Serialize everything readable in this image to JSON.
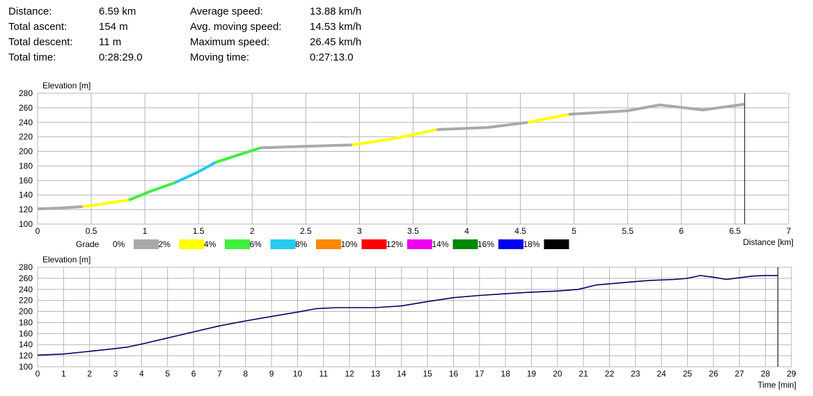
{
  "stats": {
    "left": [
      {
        "label": "Distance:",
        "value": "6.59 km"
      },
      {
        "label": "Total ascent:",
        "value": "154 m"
      },
      {
        "label": "Total descent:",
        "value": "11 m"
      },
      {
        "label": "Total time:",
        "value": "0:28:29.0"
      }
    ],
    "right": [
      {
        "label": "Average speed:",
        "value": "13.88 km/h"
      },
      {
        "label": "Avg. moving speed:",
        "value": "14.53 km/h"
      },
      {
        "label": "Maximum speed:",
        "value": "26.45 km/h"
      },
      {
        "label": "Moving time:",
        "value": "0:27:13.0"
      }
    ]
  },
  "grade_legend": {
    "title": "Grade",
    "items": [
      {
        "label": "0%",
        "color": "#a9a9a9"
      },
      {
        "label": "2%",
        "color": "#ffff00"
      },
      {
        "label": "4%",
        "color": "#40ee40"
      },
      {
        "label": "6%",
        "color": "#22ccee"
      },
      {
        "label": "8%",
        "color": "#ff8800"
      },
      {
        "label": "10%",
        "color": "#ff0000"
      },
      {
        "label": "12%",
        "color": "#ee00ee"
      },
      {
        "label": "14%",
        "color": "#008800"
      },
      {
        "label": "16%",
        "color": "#0000ee"
      },
      {
        "label": "18%",
        "color": "#000000"
      }
    ]
  },
  "chart_data": [
    {
      "type": "line",
      "ylabel": "Elevation [m]",
      "xlabel": "Distance [km]",
      "xlim": [
        0,
        7
      ],
      "ylim": [
        100,
        280
      ],
      "xticks": [
        "0",
        "0.5",
        "1",
        "1.5",
        "2",
        "2.5",
        "3",
        "3.5",
        "4",
        "4.5",
        "5",
        "5.5",
        "6",
        "6.5",
        "7"
      ],
      "yticks": [
        "100",
        "120",
        "140",
        "160",
        "180",
        "200",
        "220",
        "240",
        "260",
        "280"
      ],
      "grid": true,
      "marker_x": 6.59,
      "segments": [
        {
          "grade": "0%",
          "color": "#a9a9a9",
          "x": [
            0,
            0.2,
            0.42
          ],
          "y": [
            121,
            122,
            124
          ]
        },
        {
          "grade": "2%",
          "color": "#ffff00",
          "x": [
            0.42,
            0.85
          ],
          "y": [
            124,
            133
          ]
        },
        {
          "grade": "4%",
          "color": "#40ee40",
          "x": [
            0.85,
            1.05,
            1.28
          ],
          "y": [
            133,
            145,
            157
          ]
        },
        {
          "grade": "6%",
          "color": "#22ccee",
          "x": [
            1.28,
            1.5,
            1.66
          ],
          "y": [
            157,
            172,
            185
          ]
        },
        {
          "grade": "4%",
          "color": "#40ee40",
          "x": [
            1.66,
            2.08
          ],
          "y": [
            185,
            205
          ]
        },
        {
          "grade": "0%",
          "color": "#a9a9a9",
          "x": [
            2.08,
            2.5,
            2.93
          ],
          "y": [
            205,
            207,
            209
          ]
        },
        {
          "grade": "2%",
          "color": "#ffff00",
          "x": [
            2.93,
            3.3,
            3.72
          ],
          "y": [
            209,
            217,
            230
          ]
        },
        {
          "grade": "0%",
          "color": "#a9a9a9",
          "x": [
            3.72,
            4.2,
            4.57
          ],
          "y": [
            230,
            233,
            240
          ]
        },
        {
          "grade": "2%",
          "color": "#ffff00",
          "x": [
            4.57,
            4.95
          ],
          "y": [
            240,
            251
          ]
        },
        {
          "grade": "0%",
          "color": "#a9a9a9",
          "x": [
            4.95,
            5.5,
            5.8,
            6.2,
            6.59
          ],
          "y": [
            251,
            256,
            264,
            257,
            265
          ]
        }
      ]
    },
    {
      "type": "line",
      "ylabel": "Elevation [m]",
      "xlabel": "Time [min]",
      "xlim": [
        0,
        29
      ],
      "ylim": [
        100,
        280
      ],
      "xticks": [
        "0",
        "1",
        "2",
        "3",
        "4",
        "5",
        "6",
        "7",
        "8",
        "9",
        "10",
        "11",
        "12",
        "13",
        "14",
        "15",
        "16",
        "17",
        "18",
        "19",
        "20",
        "21",
        "22",
        "23",
        "24",
        "25",
        "26",
        "27",
        "28",
        "29"
      ],
      "yticks": [
        "100",
        "120",
        "140",
        "160",
        "180",
        "200",
        "220",
        "240",
        "260",
        "280"
      ],
      "grid": true,
      "marker_x": 28.48,
      "line_color": "#000066",
      "series": [
        {
          "x": [
            0,
            1,
            2,
            3,
            3.5,
            4,
            5,
            6,
            7,
            8,
            9,
            10,
            10.7,
            11.5,
            13,
            14,
            15,
            16,
            17,
            18,
            19,
            20,
            20.8,
            21.5,
            22.5,
            23.5,
            24.5,
            25,
            25.5,
            26,
            26.5,
            27,
            27.5,
            28,
            28.48
          ],
          "y": [
            121,
            123,
            128,
            133,
            136,
            141,
            152,
            163,
            174,
            183,
            191,
            199,
            205,
            207,
            207,
            210,
            218,
            225,
            229,
            232,
            235,
            237,
            240,
            248,
            252,
            256,
            258,
            260,
            265,
            262,
            258,
            261,
            264,
            265,
            265
          ]
        }
      ]
    }
  ]
}
